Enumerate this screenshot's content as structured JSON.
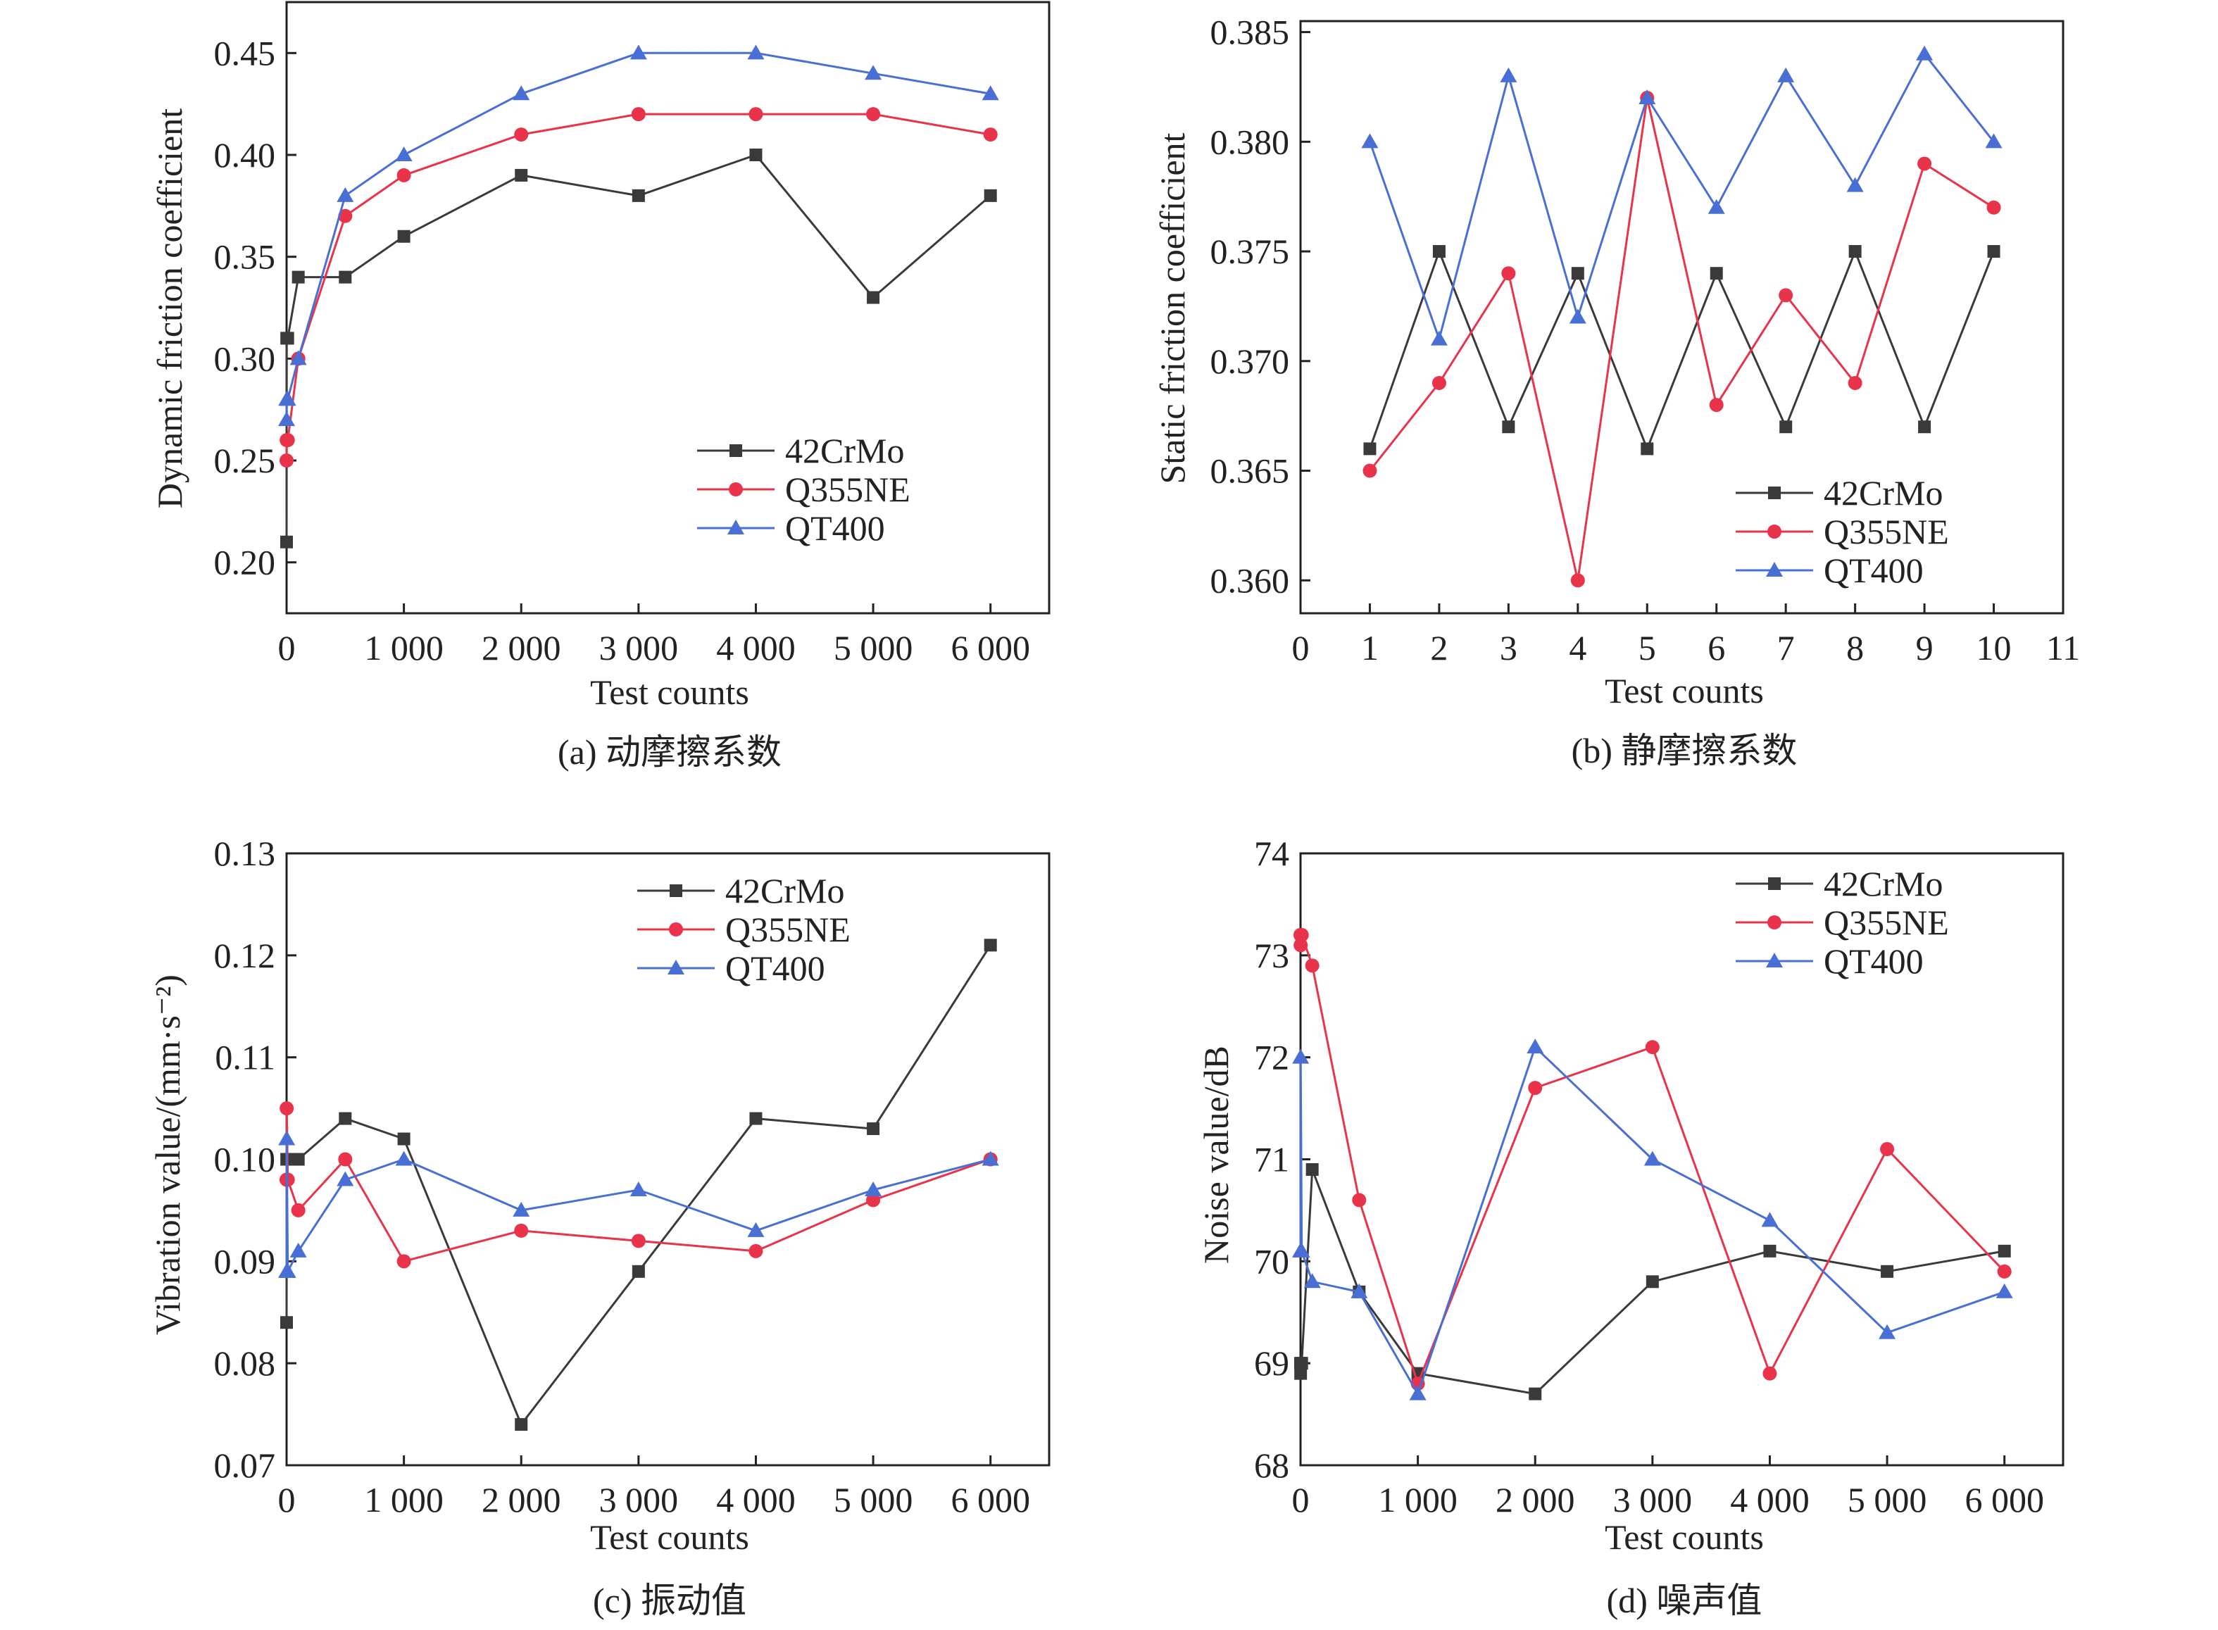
{
  "colors": {
    "42CrMo": "#3a3a3a",
    "Q355NE": "#e8334a",
    "QT400": "#4a6fd4",
    "axis": "#222222"
  },
  "chart_data": [
    {
      "id": "a",
      "type": "line",
      "caption": "(a) 动摩擦系数",
      "xlabel": "Test counts",
      "ylabel": "Dynamic friction coefficient",
      "xlim": [
        0,
        6500
      ],
      "ylim": [
        0.175,
        0.475
      ],
      "xticks": [
        0,
        1000,
        2000,
        3000,
        4000,
        5000,
        6000
      ],
      "xtick_labels": [
        "0",
        "1 000",
        "2 000",
        "3 000",
        "4 000",
        "5 000",
        "6 000"
      ],
      "yticks": [
        0.2,
        0.25,
        0.3,
        0.35,
        0.4,
        0.45
      ],
      "ytick_labels": [
        "0.20",
        "0.25",
        "0.30",
        "0.35",
        "0.40",
        "0.45"
      ],
      "legend_position": "bottom-right",
      "series": [
        {
          "name": "42CrMo",
          "marker": "square",
          "x": [
            0,
            1,
            10,
            100,
            500,
            1000,
            2000,
            3000,
            4000,
            5000,
            6000
          ],
          "y": [
            0.21,
            0.31,
            0.31,
            0.34,
            0.34,
            0.36,
            0.39,
            0.38,
            0.4,
            0.33,
            0.38
          ]
        },
        {
          "name": "Q355NE",
          "marker": "circle",
          "x": [
            0,
            1,
            10,
            100,
            500,
            1000,
            2000,
            3000,
            4000,
            5000,
            6000
          ],
          "y": [
            0.25,
            0.26,
            0.26,
            0.3,
            0.37,
            0.39,
            0.41,
            0.42,
            0.42,
            0.42,
            0.41
          ]
        },
        {
          "name": "QT400",
          "marker": "triangle",
          "x": [
            0,
            1,
            10,
            100,
            500,
            1000,
            2000,
            3000,
            4000,
            5000,
            6000
          ],
          "y": [
            0.27,
            0.28,
            0.28,
            0.3,
            0.38,
            0.4,
            0.43,
            0.45,
            0.45,
            0.44,
            0.43
          ]
        }
      ]
    },
    {
      "id": "b",
      "type": "line",
      "caption": "(b) 静摩擦系数",
      "xlabel": "Test counts",
      "ylabel": "Static friction coefficient",
      "xlim": [
        0,
        11
      ],
      "ylim": [
        0.3585,
        0.3855
      ],
      "xticks": [
        0,
        1,
        2,
        3,
        4,
        5,
        6,
        7,
        8,
        9,
        10,
        11
      ],
      "xtick_labels": [
        "0",
        "1",
        "2",
        "3",
        "4",
        "5",
        "6",
        "7",
        "8",
        "9",
        "10",
        "11"
      ],
      "yticks": [
        0.36,
        0.365,
        0.37,
        0.375,
        0.38,
        0.385
      ],
      "ytick_labels": [
        "0.360",
        "0.365",
        "0.370",
        "0.375",
        "0.380",
        "0.385"
      ],
      "legend_position": "bottom-right",
      "series": [
        {
          "name": "42CrMo",
          "marker": "square",
          "x": [
            1,
            2,
            3,
            4,
            5,
            6,
            7,
            8,
            9,
            10
          ],
          "y": [
            0.366,
            0.375,
            0.367,
            0.374,
            0.366,
            0.374,
            0.367,
            0.375,
            0.367,
            0.375
          ]
        },
        {
          "name": "Q355NE",
          "marker": "circle",
          "x": [
            1,
            2,
            3,
            4,
            5,
            6,
            7,
            8,
            9,
            10
          ],
          "y": [
            0.365,
            0.369,
            0.374,
            0.36,
            0.382,
            0.368,
            0.373,
            0.369,
            0.379,
            0.377
          ]
        },
        {
          "name": "QT400",
          "marker": "triangle",
          "x": [
            1,
            2,
            3,
            4,
            5,
            6,
            7,
            8,
            9,
            10
          ],
          "y": [
            0.38,
            0.371,
            0.383,
            0.372,
            0.382,
            0.377,
            0.383,
            0.378,
            0.384,
            0.38
          ]
        }
      ]
    },
    {
      "id": "c",
      "type": "line",
      "caption": "(c) 振动值",
      "xlabel": "Test counts",
      "ylabel": "Vibration value/(mm·s⁻²)",
      "xlim": [
        0,
        6500
      ],
      "ylim": [
        0.07,
        0.13
      ],
      "xticks": [
        0,
        1000,
        2000,
        3000,
        4000,
        5000,
        6000
      ],
      "xtick_labels": [
        "0",
        "1 000",
        "2 000",
        "3 000",
        "4 000",
        "5 000",
        "6 000"
      ],
      "yticks": [
        0.07,
        0.08,
        0.09,
        0.1,
        0.11,
        0.12,
        0.13
      ],
      "ytick_labels": [
        "0.07",
        "0.08",
        "0.09",
        "0.10",
        "0.11",
        "0.12",
        "0.13"
      ],
      "legend_position": "top-right",
      "series": [
        {
          "name": "42CrMo",
          "marker": "square",
          "x": [
            0,
            1,
            10,
            100,
            500,
            1000,
            2000,
            3000,
            4000,
            5000,
            6000
          ],
          "y": [
            0.084,
            0.1,
            0.1,
            0.1,
            0.104,
            0.102,
            0.074,
            0.089,
            0.104,
            0.103,
            0.121
          ]
        },
        {
          "name": "Q355NE",
          "marker": "circle",
          "x": [
            0,
            1,
            10,
            100,
            500,
            1000,
            2000,
            3000,
            4000,
            5000,
            6000
          ],
          "y": [
            0.098,
            0.105,
            0.098,
            0.095,
            0.1,
            0.09,
            0.093,
            0.092,
            0.091,
            0.096,
            0.1
          ]
        },
        {
          "name": "QT400",
          "marker": "triangle",
          "x": [
            0,
            1,
            10,
            100,
            500,
            1000,
            2000,
            3000,
            4000,
            5000,
            6000
          ],
          "y": [
            0.089,
            0.102,
            0.089,
            0.091,
            0.098,
            0.1,
            0.095,
            0.097,
            0.093,
            0.097,
            0.1
          ]
        }
      ]
    },
    {
      "id": "d",
      "type": "line",
      "caption": "(d) 噪声值",
      "xlabel": "Test counts",
      "ylabel": "Noise value/dB",
      "xlim": [
        0,
        6500
      ],
      "ylim": [
        68,
        74
      ],
      "xticks": [
        0,
        1000,
        2000,
        3000,
        4000,
        5000,
        6000
      ],
      "xtick_labels": [
        "0",
        "1 000",
        "2 000",
        "3 000",
        "4 000",
        "5 000",
        "6 000"
      ],
      "yticks": [
        68,
        69,
        70,
        71,
        72,
        73,
        74
      ],
      "ytick_labels": [
        "68",
        "69",
        "70",
        "71",
        "72",
        "73",
        "74"
      ],
      "legend_position": "top-right",
      "series": [
        {
          "name": "42CrMo",
          "marker": "square",
          "x": [
            0,
            1,
            10,
            100,
            500,
            1000,
            2000,
            3000,
            4000,
            5000,
            6000
          ],
          "y": [
            69.0,
            68.9,
            69.0,
            70.9,
            69.7,
            68.9,
            68.7,
            69.8,
            70.1,
            69.9,
            70.1
          ]
        },
        {
          "name": "Q355NE",
          "marker": "circle",
          "x": [
            0,
            1,
            10,
            100,
            500,
            1000,
            2000,
            3000,
            4000,
            5000,
            6000
          ],
          "y": [
            73.2,
            73.1,
            73.2,
            72.9,
            70.6,
            68.8,
            71.7,
            72.1,
            68.9,
            71.1,
            69.9
          ]
        },
        {
          "name": "QT400",
          "marker": "triangle",
          "x": [
            0,
            1,
            10,
            100,
            500,
            1000,
            2000,
            3000,
            4000,
            5000,
            6000
          ],
          "y": [
            70.1,
            72.0,
            70.1,
            69.8,
            69.7,
            68.7,
            72.1,
            71.0,
            70.4,
            69.3,
            69.7
          ]
        }
      ]
    }
  ]
}
